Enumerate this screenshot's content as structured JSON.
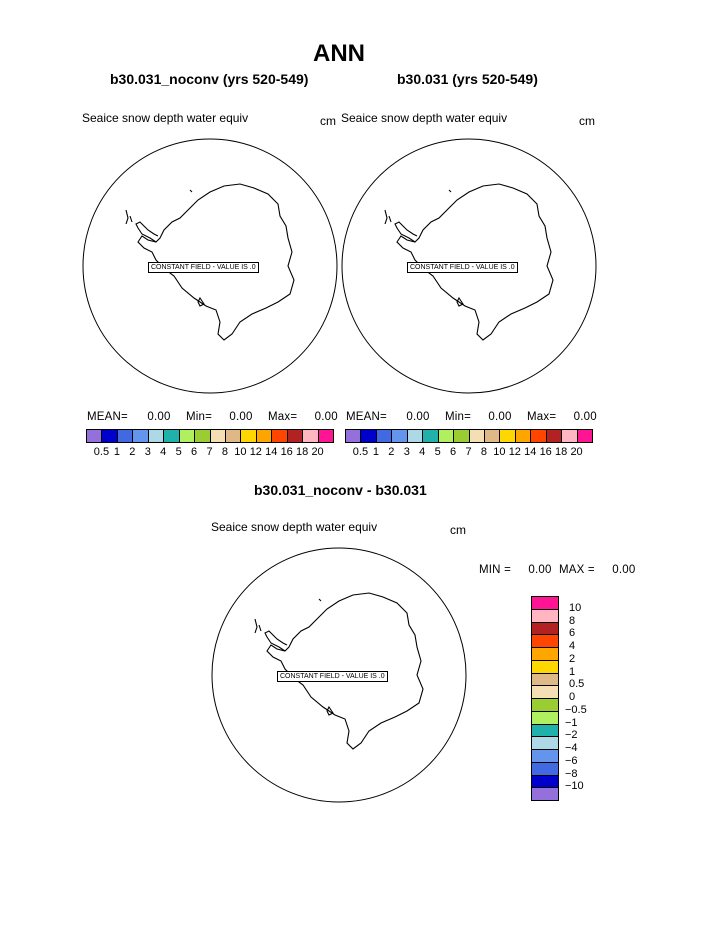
{
  "page": {
    "title": "ANN"
  },
  "panels": [
    {
      "subtitle": "b30.031_noconv (yrs 520-549)",
      "variable": "Seaice snow depth water equiv",
      "units": "cm",
      "constant_field": "CONSTANT FIELD - VALUE IS .0",
      "stats": {
        "mean_label": "MEAN=",
        "mean": "0.00",
        "min_label": "Min=",
        "min": "0.00",
        "max_label": "Max=",
        "max": "0.00"
      }
    },
    {
      "subtitle": "b30.031 (yrs 520-549)",
      "variable": "Seaice snow depth water equiv",
      "units": "cm",
      "constant_field": "CONSTANT FIELD - VALUE IS .0",
      "stats": {
        "mean_label": "MEAN=",
        "mean": "0.00",
        "min_label": "Min=",
        "min": "0.00",
        "max_label": "Max=",
        "max": "0.00"
      }
    }
  ],
  "difference": {
    "subtitle": "b30.031_noconv - b30.031",
    "variable": "Seaice snow depth water equiv",
    "units": "cm",
    "constant_field": "CONSTANT FIELD - VALUE IS .0",
    "stats": {
      "min_label": "MIN =",
      "min": "0.00",
      "max_label": "MAX =",
      "max": "0.00"
    }
  },
  "colorbar_levels": [
    "0.5",
    "1",
    "2",
    "3",
    "4",
    "5",
    "6",
    "7",
    "8",
    "10",
    "12",
    "14",
    "16",
    "18",
    "20"
  ],
  "colorbar_colors": [
    "#9370db",
    "#0000cd",
    "#4169e1",
    "#6495ed",
    "#add8e6",
    "#20b2aa",
    "#b0f060",
    "#9acd32",
    "#f5deb3",
    "#deb887",
    "#ffd700",
    "#ffa500",
    "#ff4500",
    "#b22222",
    "#ffb6c1",
    "#ff1493"
  ],
  "diff_levels": [
    "10",
    "8",
    "6",
    "4",
    "2",
    "1",
    "0.5",
    "0",
    "−0.5",
    "−1",
    "−2",
    "−4",
    "−6",
    "−8",
    "−10"
  ],
  "diff_colors": [
    "#ff1493",
    "#ffb6c1",
    "#b22222",
    "#ff4500",
    "#ffa500",
    "#ffd700",
    "#deb887",
    "#f5deb3",
    "#9acd32",
    "#b0f060",
    "#20b2aa",
    "#add8e6",
    "#6495ed",
    "#4169e1",
    "#0000cd",
    "#9370db"
  ]
}
